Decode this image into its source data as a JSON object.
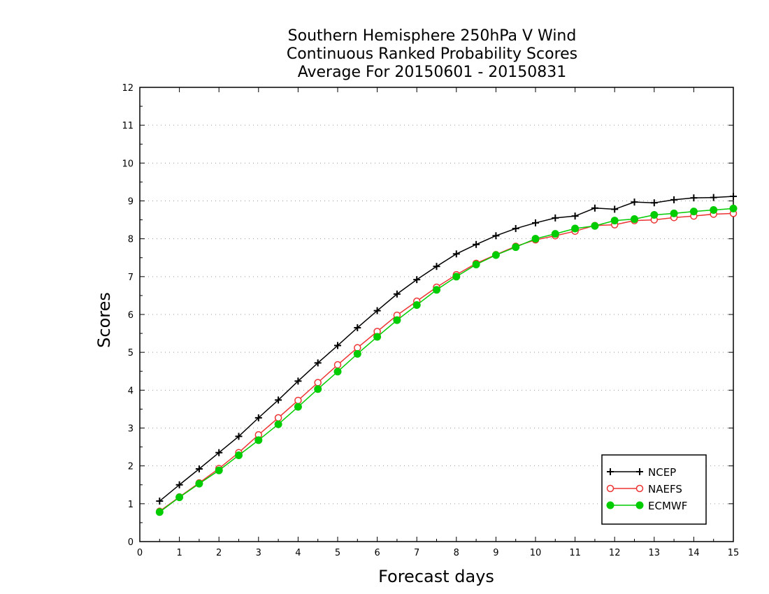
{
  "chart_data": {
    "type": "line",
    "title_lines": [
      "Southern Hemisphere 250hPa V Wind",
      "Continuous Ranked Probability Scores",
      "Average For 20150601 - 20150831"
    ],
    "xlabel": "Forecast days",
    "ylabel": "Scores",
    "xlim": [
      0,
      15
    ],
    "ylim": [
      0,
      12
    ],
    "xticks": [
      "0",
      "1",
      "2",
      "3",
      "4",
      "5",
      "6",
      "7",
      "8",
      "9",
      "10",
      "11",
      "12",
      "13",
      "14",
      "15"
    ],
    "yticks": [
      "0",
      "1",
      "2",
      "3",
      "4",
      "5",
      "6",
      "7",
      "8",
      "9",
      "10",
      "11",
      "12"
    ],
    "grid": "horizontal dotted",
    "legend_position": "bottom-right",
    "x": [
      0.5,
      1,
      1.5,
      2,
      2.5,
      3,
      3.5,
      4,
      4.5,
      5,
      5.5,
      6,
      6.5,
      7,
      7.5,
      8,
      8.5,
      9,
      9.5,
      10,
      10.5,
      11,
      11.5,
      12,
      12.5,
      13,
      13.5,
      14,
      14.5,
      15
    ],
    "series": [
      {
        "name": "NCEP",
        "color": "#000000",
        "marker": "plus",
        "values": [
          1.07,
          1.5,
          1.92,
          2.35,
          2.78,
          3.27,
          3.74,
          4.24,
          4.72,
          5.18,
          5.65,
          6.1,
          6.54,
          6.92,
          7.27,
          7.6,
          7.85,
          8.08,
          8.27,
          8.42,
          8.55,
          8.6,
          8.81,
          8.78,
          8.97,
          8.95,
          9.03,
          9.08,
          9.09,
          9.12
        ]
      },
      {
        "name": "NAEFS",
        "color": "#ee3333",
        "marker": "open-circle",
        "values": [
          0.8,
          1.18,
          1.55,
          1.93,
          2.35,
          2.82,
          3.27,
          3.73,
          4.2,
          4.67,
          5.12,
          5.55,
          5.98,
          6.35,
          6.72,
          7.05,
          7.35,
          7.58,
          7.8,
          7.97,
          8.08,
          8.2,
          8.35,
          8.37,
          8.48,
          8.5,
          8.56,
          8.6,
          8.65,
          8.67
        ]
      },
      {
        "name": "ECMWF",
        "color": "#00cc00",
        "marker": "filled-circle",
        "values": [
          0.78,
          1.17,
          1.53,
          1.88,
          2.28,
          2.68,
          3.1,
          3.56,
          4.03,
          4.49,
          4.96,
          5.41,
          5.85,
          6.25,
          6.65,
          7.0,
          7.32,
          7.57,
          7.78,
          8.0,
          8.13,
          8.27,
          8.34,
          8.48,
          8.52,
          8.63,
          8.67,
          8.72,
          8.76,
          8.8
        ]
      }
    ]
  }
}
